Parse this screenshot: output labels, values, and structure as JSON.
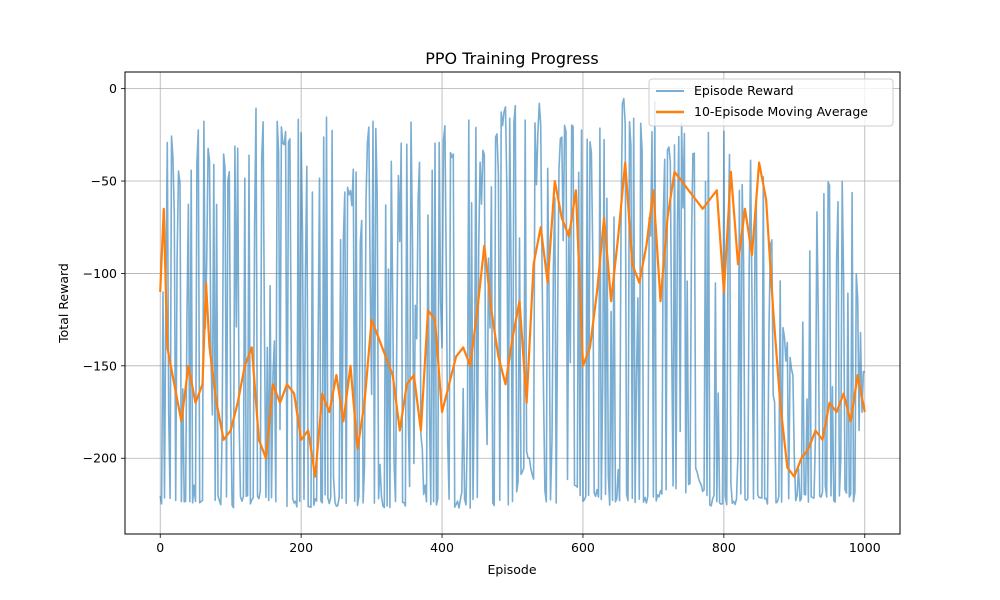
{
  "chart_data": {
    "type": "line",
    "title": "PPO Training Progress",
    "xlabel": "Episode",
    "ylabel": "Total Reward",
    "xlim": [
      -50,
      1050
    ],
    "ylim": [
      -241,
      9
    ],
    "xticks": [
      0,
      200,
      400,
      600,
      800,
      1000
    ],
    "yticks": [
      -200,
      -150,
      -100,
      -50,
      0
    ],
    "grid": true,
    "legend_position": "top-right",
    "episodes": 1000,
    "series": [
      {
        "name": "Episode Reward",
        "color": "#1f77b4",
        "opacity": 0.6,
        "summary": {
          "min": -228,
          "max": -3,
          "low_band": -225
        },
        "x": [
          0,
          20,
          40,
          60,
          80,
          100,
          120,
          140,
          160,
          180,
          200,
          220,
          240,
          260,
          280,
          300,
          320,
          340,
          360,
          380,
          400,
          420,
          440,
          460,
          480,
          500,
          520,
          540,
          560,
          580,
          600,
          620,
          640,
          660,
          680,
          700,
          720,
          740,
          760,
          780,
          800,
          820,
          840,
          860,
          880,
          900,
          920,
          940,
          960,
          980,
          1000
        ],
        "high_envelope": [
          -3,
          -30,
          -40,
          -10,
          -40,
          -25,
          -30,
          -5,
          -15,
          -20,
          -5,
          -45,
          -5,
          -45,
          -40,
          -5,
          -45,
          -30,
          -5,
          -45,
          -5,
          -40,
          -5,
          -30,
          -5,
          -5,
          -10,
          -5,
          -40,
          -5,
          -15,
          -20,
          -5,
          -5,
          -20,
          -5,
          -25,
          -10,
          -20,
          -10,
          -10,
          -45,
          -20,
          -45,
          -100,
          -150,
          -90,
          -50,
          -45,
          -40,
          -150
        ],
        "low_envelope": [
          -226,
          -226,
          -225,
          -226,
          -225,
          -227,
          -226,
          -226,
          -225,
          -227,
          -228,
          -226,
          -225,
          -227,
          -226,
          -225,
          -227,
          -228,
          -226,
          -225,
          -226,
          -227,
          -228,
          -225,
          -226,
          -227,
          -200,
          -225,
          -226,
          -210,
          -225,
          -222,
          -226,
          -225,
          -225,
          -225,
          -218,
          -225,
          -210,
          -226,
          -226,
          -225,
          -224,
          -225,
          -224,
          -224,
          -225,
          -224,
          -224,
          -224,
          -224
        ]
      },
      {
        "name": "10-Episode Moving Average",
        "color": "#ff7f0e",
        "opacity": 1,
        "x": [
          0,
          5,
          10,
          20,
          30,
          40,
          50,
          60,
          65,
          70,
          80,
          90,
          100,
          110,
          120,
          130,
          140,
          150,
          160,
          170,
          180,
          190,
          200,
          210,
          220,
          230,
          240,
          250,
          260,
          270,
          280,
          290,
          300,
          310,
          320,
          330,
          340,
          350,
          360,
          370,
          380,
          390,
          400,
          410,
          420,
          430,
          440,
          450,
          460,
          470,
          480,
          490,
          500,
          510,
          520,
          530,
          540,
          550,
          560,
          570,
          580,
          590,
          600,
          610,
          620,
          630,
          640,
          650,
          660,
          670,
          680,
          690,
          700,
          710,
          720,
          730,
          740,
          750,
          760,
          770,
          780,
          790,
          800,
          810,
          820,
          830,
          840,
          850,
          860,
          870,
          880,
          890,
          900,
          910,
          920,
          930,
          940,
          950,
          960,
          970,
          980,
          990,
          1000
        ],
        "y": [
          -110,
          -65,
          -140,
          -160,
          -180,
          -150,
          -170,
          -160,
          -105,
          -140,
          -170,
          -190,
          -185,
          -170,
          -150,
          -140,
          -190,
          -200,
          -160,
          -170,
          -160,
          -165,
          -190,
          -185,
          -210,
          -165,
          -175,
          -155,
          -180,
          -150,
          -195,
          -170,
          -125,
          -135,
          -145,
          -155,
          -185,
          -160,
          -155,
          -185,
          -120,
          -125,
          -175,
          -160,
          -145,
          -140,
          -150,
          -120,
          -85,
          -120,
          -145,
          -160,
          -135,
          -115,
          -170,
          -95,
          -75,
          -105,
          -50,
          -70,
          -80,
          -55,
          -150,
          -140,
          -110,
          -70,
          -115,
          -80,
          -40,
          -95,
          -105,
          -85,
          -55,
          -115,
          -70,
          -45,
          -50,
          -55,
          -60,
          -65,
          -60,
          -55,
          -110,
          -45,
          -95,
          -65,
          -90,
          -40,
          -60,
          -120,
          -170,
          -205,
          -210,
          -200,
          -195,
          -185,
          -190,
          -170,
          -175,
          -165,
          -180,
          -155,
          -175
        ]
      }
    ]
  }
}
